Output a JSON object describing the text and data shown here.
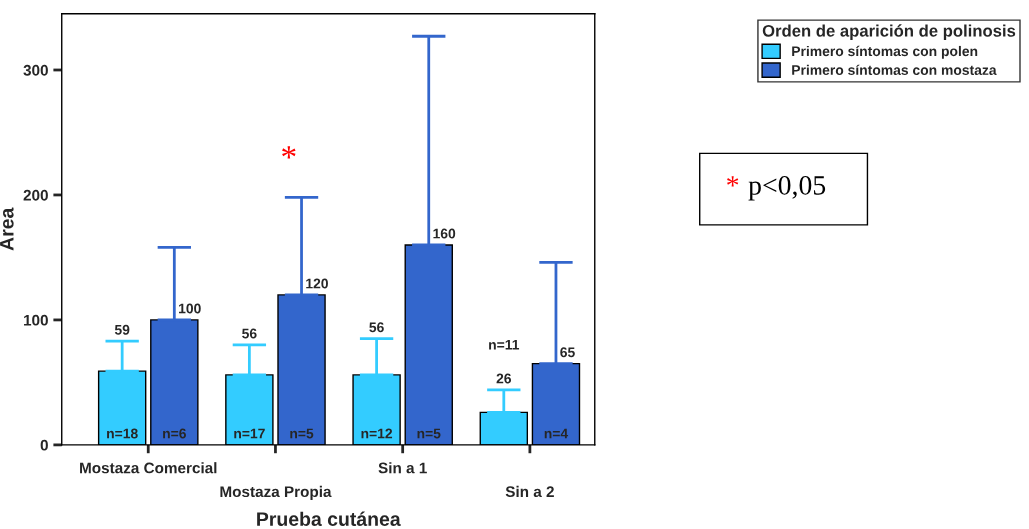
{
  "chart_data": {
    "type": "bar",
    "categories": [
      "Mostaza Comercial",
      "Mostaza Propia",
      "Sin a 1",
      "Sin a 2"
    ],
    "xlabel": "Prueba cutánea",
    "ylabel": "Area",
    "legend_title": "Orden de aparición de polinosis",
    "ylim": [
      0,
      345
    ],
    "yticks": [
      0,
      100,
      200,
      300
    ],
    "grid": false,
    "legend": "top right",
    "series": [
      {
        "name": "Primero síntomas con polen",
        "color": "#33ccff",
        "values": [
          59,
          56,
          56,
          26
        ],
        "errors": [
          [
            59,
            83
          ],
          [
            56,
            80
          ],
          [
            56,
            85
          ],
          [
            26,
            44
          ]
        ],
        "value_labels": [
          "59",
          "56",
          "56",
          "26"
        ]
      },
      {
        "name": "Primero síntomas con mostaza",
        "color": "#3366cc",
        "values": [
          100,
          120,
          160,
          65
        ],
        "errors": [
          [
            100,
            158
          ],
          [
            120,
            198
          ],
          [
            160,
            327
          ],
          [
            65,
            146
          ]
        ],
        "value_labels": [
          "100",
          "120",
          "160",
          "65"
        ]
      }
    ],
    "annotations": [
      "n=18",
      "n=6",
      "n=17",
      "n=5",
      "n=12",
      "n=5",
      "n=11",
      "n=4",
      "* p<0,05",
      "*"
    ]
  }
}
